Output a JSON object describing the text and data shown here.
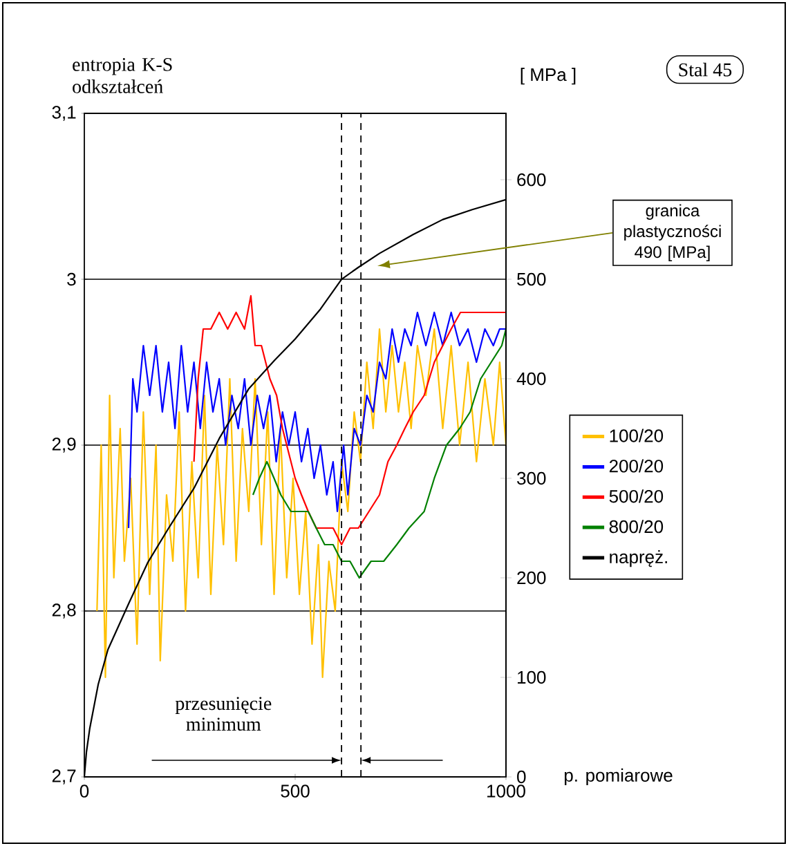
{
  "chart_data": {
    "type": "line",
    "xlabel": "p. pomiarowe",
    "ylabel": "entropia K-S odkształceń",
    "y2label": "[ MPa ]",
    "xlim": [
      0,
      1000
    ],
    "xticks": [
      0,
      500,
      1000
    ],
    "ylim": [
      2.7,
      3.1
    ],
    "yticks": [
      {
        "value": 2.7,
        "label": "2,7"
      },
      {
        "value": 2.8,
        "label": "2,8"
      },
      {
        "value": 2.9,
        "label": "2,9"
      },
      3,
      {
        "value": 3.1,
        "label": "3,1"
      }
    ],
    "y2lim": [
      0,
      666.7
    ],
    "y2ticks": [
      0,
      100,
      200,
      300,
      400,
      500,
      600
    ],
    "grid": "y",
    "legend": "right",
    "series": [
      {
        "name": "100/20",
        "color": "#ffc000",
        "x": [
          30,
          40,
          50,
          60,
          70,
          85,
          95,
          110,
          125,
          140,
          155,
          170,
          180,
          195,
          210,
          225,
          240,
          255,
          270,
          285,
          300,
          315,
          330,
          345,
          360,
          375,
          390,
          405,
          420,
          435,
          450,
          465,
          480,
          495,
          510,
          525,
          540,
          555,
          565,
          580,
          595,
          610,
          625,
          640,
          655,
          670,
          685,
          700,
          715,
          730,
          745,
          760,
          775,
          790,
          810,
          830,
          850,
          870,
          890,
          910,
          930,
          950,
          970,
          985,
          1000
        ],
        "values": [
          2.8,
          2.9,
          2.76,
          2.93,
          2.82,
          2.91,
          2.83,
          2.88,
          2.78,
          2.92,
          2.81,
          2.9,
          2.77,
          2.87,
          2.83,
          2.92,
          2.8,
          2.89,
          2.82,
          2.93,
          2.81,
          2.9,
          2.84,
          2.94,
          2.83,
          2.91,
          2.86,
          2.94,
          2.84,
          2.92,
          2.81,
          2.91,
          2.82,
          2.88,
          2.81,
          2.86,
          2.78,
          2.84,
          2.76,
          2.83,
          2.8,
          2.89,
          2.86,
          2.92,
          2.89,
          2.95,
          2.91,
          2.97,
          2.92,
          2.96,
          2.92,
          2.95,
          2.91,
          2.96,
          2.93,
          2.97,
          2.91,
          2.96,
          2.9,
          2.95,
          2.89,
          2.94,
          2.9,
          2.95,
          2.9
        ]
      },
      {
        "name": "200/20",
        "color": "#0000ff",
        "x": [
          105,
          115,
          125,
          140,
          155,
          170,
          185,
          200,
          215,
          230,
          245,
          260,
          275,
          290,
          305,
          320,
          335,
          350,
          365,
          380,
          395,
          410,
          425,
          440,
          455,
          470,
          485,
          500,
          515,
          530,
          545,
          560,
          575,
          590,
          600,
          615,
          625,
          640,
          655,
          670,
          685,
          700,
          715,
          730,
          745,
          760,
          775,
          790,
          810,
          830,
          850,
          870,
          890,
          910,
          930,
          950,
          970,
          985,
          1000
        ],
        "values": [
          2.85,
          2.94,
          2.92,
          2.96,
          2.93,
          2.96,
          2.92,
          2.95,
          2.91,
          2.96,
          2.92,
          2.95,
          2.91,
          2.95,
          2.92,
          2.94,
          2.9,
          2.93,
          2.91,
          2.94,
          2.9,
          2.93,
          2.91,
          2.93,
          2.89,
          2.92,
          2.9,
          2.92,
          2.89,
          2.91,
          2.88,
          2.9,
          2.87,
          2.89,
          2.86,
          2.9,
          2.87,
          2.91,
          2.9,
          2.93,
          2.92,
          2.95,
          2.94,
          2.97,
          2.95,
          2.97,
          2.96,
          2.98,
          2.96,
          2.98,
          2.96,
          2.98,
          2.96,
          2.97,
          2.95,
          2.97,
          2.96,
          2.97,
          2.97
        ]
      },
      {
        "name": "500/20",
        "color": "#ff0000",
        "x": [
          260,
          270,
          282,
          300,
          320,
          340,
          360,
          380,
          395,
          405,
          420,
          440,
          456,
          470,
          480,
          500,
          515,
          531,
          550,
          570,
          590,
          610,
          630,
          650,
          675,
          700,
          720,
          741,
          760,
          780,
          806,
          830,
          850,
          870,
          892,
          920,
          950,
          975,
          1000
        ],
        "values": [
          2.89,
          2.94,
          2.97,
          2.97,
          2.98,
          2.97,
          2.98,
          2.97,
          2.99,
          2.96,
          2.96,
          2.94,
          2.93,
          2.91,
          2.9,
          2.88,
          2.87,
          2.86,
          2.85,
          2.85,
          2.85,
          2.84,
          2.85,
          2.85,
          2.86,
          2.87,
          2.89,
          2.9,
          2.91,
          2.92,
          2.93,
          2.95,
          2.96,
          2.97,
          2.98,
          2.98,
          2.98,
          2.98,
          2.98
        ]
      },
      {
        "name": "800/20",
        "color": "#008000",
        "x": [
          400,
          415,
          433,
          450,
          466,
          490,
          510,
          531,
          550,
          570,
          590,
          610,
          630,
          652,
          680,
          710,
          741,
          770,
          806,
          830,
          859,
          890,
          915,
          940,
          965,
          990,
          1000
        ],
        "values": [
          2.87,
          2.88,
          2.89,
          2.88,
          2.87,
          2.86,
          2.86,
          2.86,
          2.85,
          2.84,
          2.84,
          2.83,
          2.83,
          2.82,
          2.83,
          2.83,
          2.84,
          2.85,
          2.86,
          2.88,
          2.9,
          2.91,
          2.92,
          2.94,
          2.95,
          2.96,
          2.97
        ]
      },
      {
        "name": "napręż.",
        "color": "#000000",
        "axis": "y2",
        "x": [
          0,
          5,
          13,
          33,
          56,
          105,
          150,
          200,
          260,
          320,
          390,
          450,
          500,
          560,
          610,
          650,
          700,
          780,
          850,
          920,
          1000
        ],
        "values": [
          0,
          25,
          49,
          93,
          128,
          174,
          215,
          250,
          290,
          340,
          390,
          418,
          440,
          470,
          500,
          512,
          526,
          545,
          560,
          570,
          580
        ]
      }
    ],
    "ref_lines": [
      {
        "axis": "x",
        "value": 610,
        "line_style": "dashed"
      },
      {
        "axis": "x",
        "value": 656,
        "line_style": "dashed"
      }
    ],
    "annotations": [
      "Stal 45",
      "granica plastyczności 490 [MPa]",
      "przesunięcie minimum"
    ]
  }
}
